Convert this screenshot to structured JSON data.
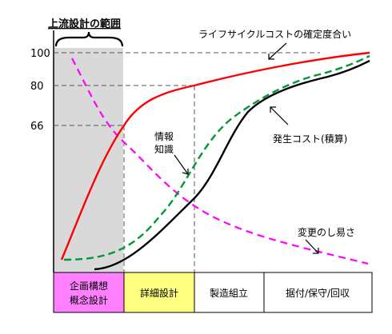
{
  "title": "上流設計の範囲",
  "y_ticks": [
    "100",
    "80",
    "66"
  ],
  "labels": {
    "certainty": "ライフサイクルコストの確定度合い",
    "info_line1": "情報",
    "info_line2": "知識",
    "cost": "発生コスト(積算)",
    "ease": "変更のし易さ"
  },
  "phases": [
    {
      "name": "企画構想",
      "name2": "概念設計",
      "color": "#ff80ff"
    },
    {
      "name": "詳細設計",
      "name2": "",
      "color": "#ffff80"
    },
    {
      "name": "製造組立",
      "name2": "",
      "color": "#ffffff"
    },
    {
      "name": "据付/保守/回収",
      "name2": "",
      "color": "#ffffff"
    }
  ],
  "colors": {
    "certainty_line": "#ff0000",
    "info_line": "#009933",
    "cost_line": "#000000",
    "ease_line": "#ff00ff",
    "shade": "#d9d9d9"
  }
}
